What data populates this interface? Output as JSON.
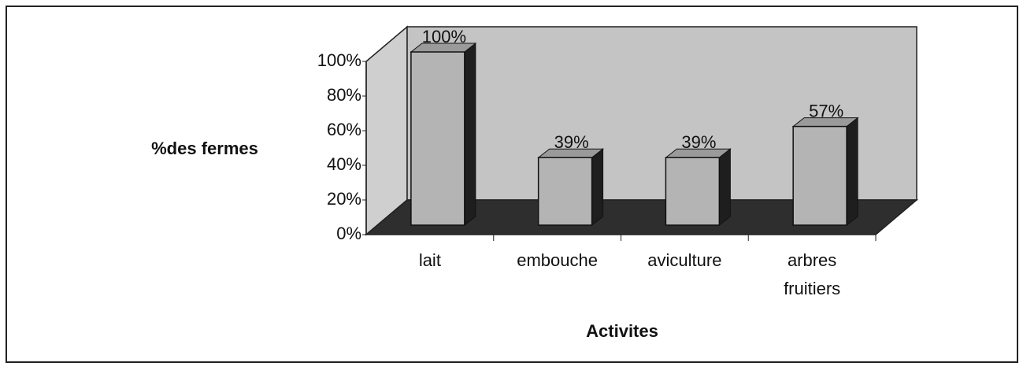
{
  "chart_data": {
    "type": "bar3d",
    "categories": [
      "lait",
      "embouche",
      "aviculture",
      "arbres fruitiers"
    ],
    "values": [
      100,
      39,
      39,
      57
    ],
    "value_labels": [
      "100%",
      "39%",
      "39%",
      "57%"
    ],
    "ylim": [
      0,
      100
    ],
    "yticks": [
      {
        "value": 0,
        "label": "0%"
      },
      {
        "value": 20,
        "label": "20%"
      },
      {
        "value": 40,
        "label": "40%"
      },
      {
        "value": 60,
        "label": "60%"
      },
      {
        "value": 80,
        "label": "80%"
      },
      {
        "value": 100,
        "label": "100%"
      }
    ],
    "ylabel": "%des fermes",
    "xlabel": "Activites",
    "color": "#b4b4b4"
  }
}
